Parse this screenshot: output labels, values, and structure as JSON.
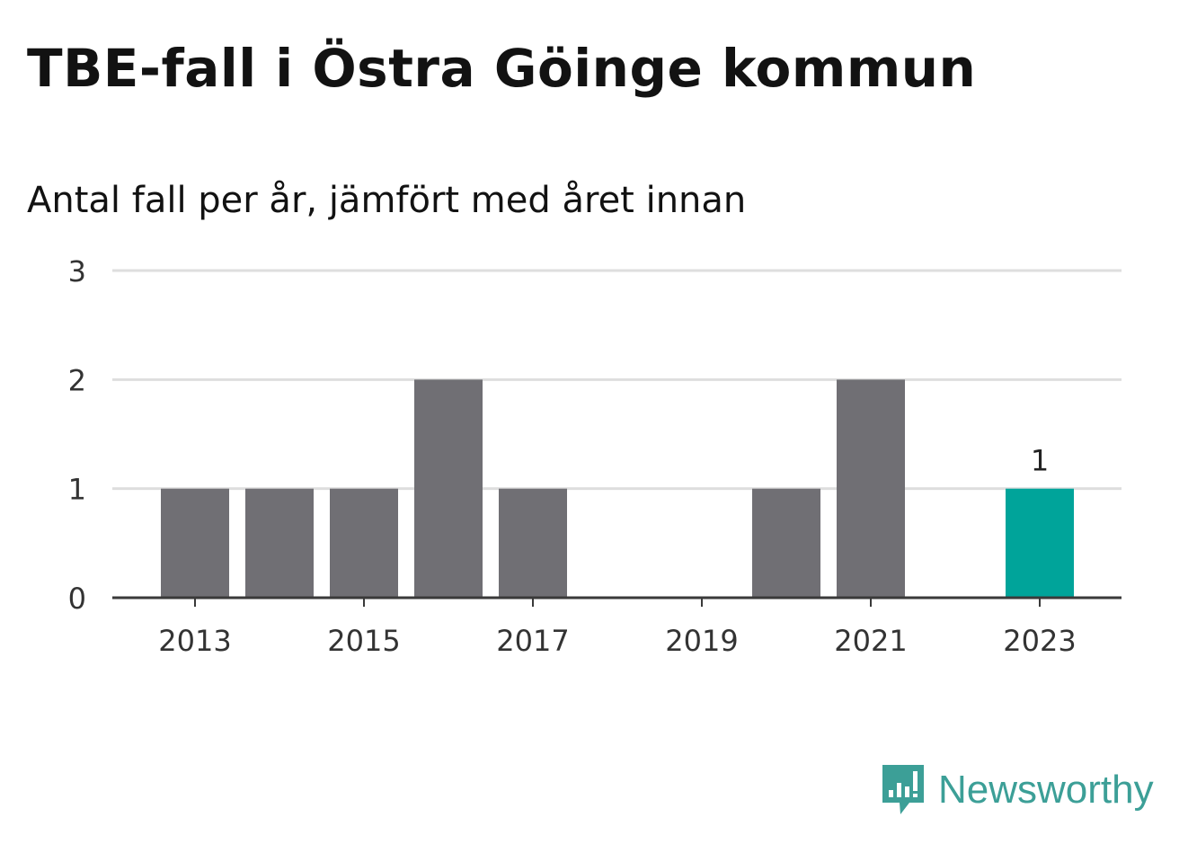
{
  "title": "TBE-fall i Östra Göinge kommun",
  "subtitle": "Antal fall per år, jämfört med året innan",
  "brand": {
    "name": "Newsworthy",
    "icon": "newsworthy-logo-icon",
    "color": "#3c9f97"
  },
  "colors": {
    "bar": "#706f74",
    "highlight": "#00a49a",
    "grid": "#dedede",
    "axis": "#3a3a3a",
    "text": "#333333"
  },
  "chart_data": {
    "type": "bar",
    "categories": [
      "2013",
      "2014",
      "2015",
      "2016",
      "2017",
      "2018",
      "2019",
      "2020",
      "2021",
      "2022",
      "2023"
    ],
    "values": [
      1,
      1,
      1,
      2,
      1,
      0,
      0,
      1,
      2,
      0,
      1
    ],
    "x_tick_labels": [
      "2013",
      "2015",
      "2017",
      "2019",
      "2021",
      "2023"
    ],
    "y_ticks": [
      0,
      1,
      2,
      3
    ],
    "ylim": [
      0,
      3
    ],
    "highlight_category": "2023",
    "data_labels": [
      {
        "category": "2023",
        "text": "1"
      }
    ],
    "grid": true,
    "legend": "none"
  }
}
